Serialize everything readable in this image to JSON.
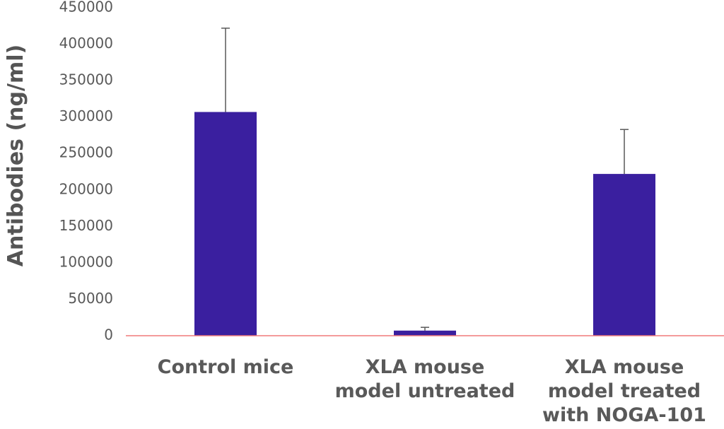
{
  "chart_data": {
    "type": "bar",
    "y_label": "Antibodies (ng/ml)",
    "categories": [
      "Control mice",
      "XLA mouse model untreated",
      "XLA mouse model treated with NOGA-101"
    ],
    "values": [
      307000,
      7000,
      222000
    ],
    "errors": [
      115000,
      4500,
      61000
    ],
    "color": "#3a1f9f",
    "ylim": [
      0,
      450000
    ],
    "yticks": [
      0,
      50000,
      100000,
      150000,
      200000,
      250000,
      300000,
      350000,
      400000,
      450000
    ],
    "grid": false
  }
}
